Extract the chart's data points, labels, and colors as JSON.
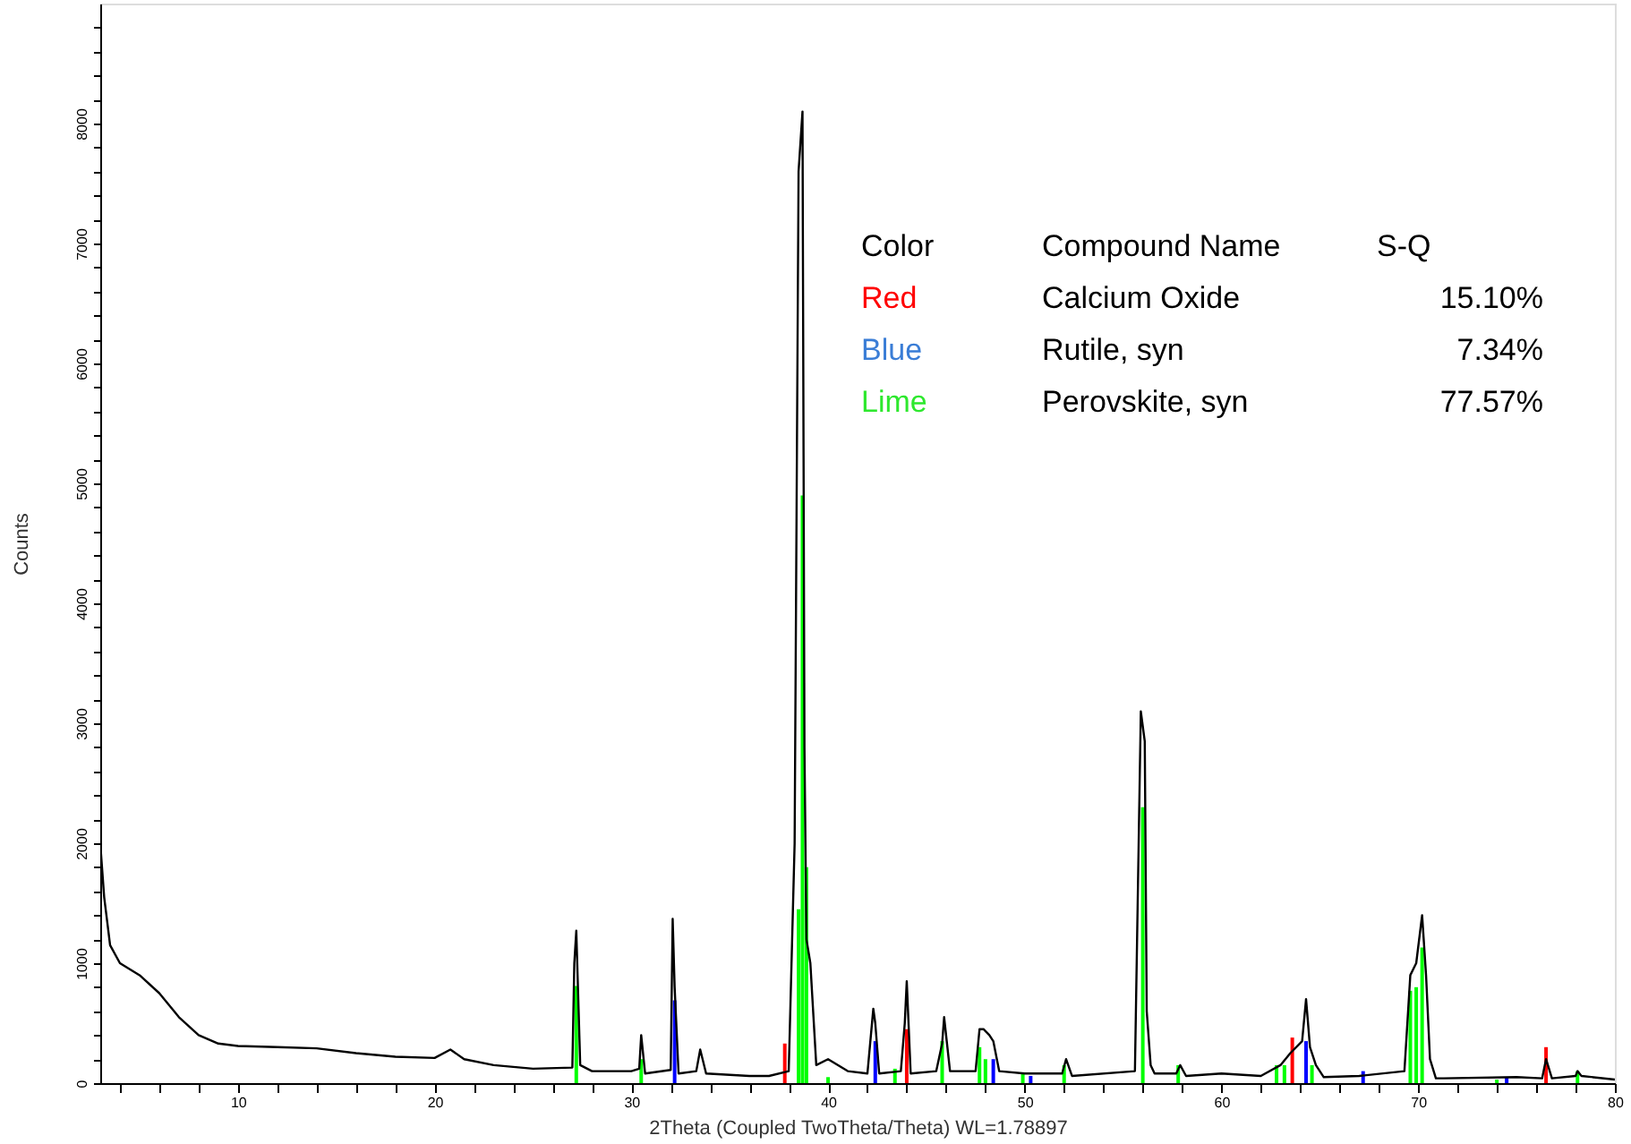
{
  "chart_data": {
    "type": "line",
    "xlabel": "2Theta (Coupled TwoTheta/Theta) WL=1.78897",
    "ylabel": "Counts",
    "xlim": [
      3,
      80
    ],
    "ylim": [
      0,
      9000
    ],
    "xticks": [
      {
        "value": 4,
        "label": null
      },
      {
        "value": 6,
        "label": null
      },
      {
        "value": 8,
        "label": null
      },
      10,
      {
        "value": 12,
        "label": null
      },
      {
        "value": 14,
        "label": null
      },
      {
        "value": 16,
        "label": null
      },
      {
        "value": 18,
        "label": null
      },
      20,
      {
        "value": 22,
        "label": null
      },
      {
        "value": 24,
        "label": null
      },
      {
        "value": 26,
        "label": null
      },
      {
        "value": 28,
        "label": null
      },
      30,
      {
        "value": 32,
        "label": null
      },
      {
        "value": 34,
        "label": null
      },
      {
        "value": 36,
        "label": null
      },
      {
        "value": 38,
        "label": null
      },
      40,
      {
        "value": 42,
        "label": null
      },
      {
        "value": 44,
        "label": null
      },
      {
        "value": 46,
        "label": null
      },
      {
        "value": 48,
        "label": null
      },
      50,
      {
        "value": 52,
        "label": null
      },
      {
        "value": 54,
        "label": null
      },
      {
        "value": 56,
        "label": null
      },
      {
        "value": 58,
        "label": null
      },
      60,
      {
        "value": 62,
        "label": null
      },
      {
        "value": 64,
        "label": null
      },
      {
        "value": 66,
        "label": null
      },
      {
        "value": 68,
        "label": null
      },
      70,
      {
        "value": 72,
        "label": null
      },
      {
        "value": 74,
        "label": null
      },
      {
        "value": 76,
        "label": null
      },
      {
        "value": 78,
        "label": null
      },
      80
    ],
    "yticks": [
      0,
      {
        "value": 200,
        "label": null
      },
      {
        "value": 400,
        "label": null
      },
      {
        "value": 600,
        "label": null
      },
      {
        "value": 800,
        "label": null
      },
      1000,
      {
        "value": 1200,
        "label": null
      },
      {
        "value": 1400,
        "label": null
      },
      {
        "value": 1600,
        "label": null
      },
      {
        "value": 1800,
        "label": null
      },
      2000,
      {
        "value": 2200,
        "label": null
      },
      {
        "value": 2400,
        "label": null
      },
      {
        "value": 2600,
        "label": null
      },
      {
        "value": 2800,
        "label": null
      },
      3000,
      {
        "value": 3200,
        "label": null
      },
      {
        "value": 3400,
        "label": null
      },
      {
        "value": 3600,
        "label": null
      },
      {
        "value": 3800,
        "label": null
      },
      4000,
      {
        "value": 4200,
        "label": null
      },
      {
        "value": 4400,
        "label": null
      },
      {
        "value": 4600,
        "label": null
      },
      {
        "value": 4800,
        "label": null
      },
      5000,
      {
        "value": 5200,
        "label": null
      },
      {
        "value": 5400,
        "label": null
      },
      {
        "value": 5600,
        "label": null
      },
      {
        "value": 5800,
        "label": null
      },
      6000,
      {
        "value": 6200,
        "label": null
      },
      {
        "value": 6400,
        "label": null
      },
      {
        "value": 6600,
        "label": null
      },
      {
        "value": 6800,
        "label": null
      },
      7000,
      {
        "value": 7200,
        "label": null
      },
      {
        "value": 7400,
        "label": null
      },
      {
        "value": 7600,
        "label": null
      },
      {
        "value": 7800,
        "label": null
      },
      8000,
      {
        "value": 8200,
        "label": null
      },
      {
        "value": 8400,
        "label": null
      },
      {
        "value": 8600,
        "label": null
      },
      {
        "value": 8800,
        "label": null
      }
    ],
    "grid": false,
    "series": [
      {
        "color": "#000000",
        "x": [
          3,
          3.2,
          3.5,
          4,
          5,
          6,
          7,
          8,
          9,
          10,
          12,
          14,
          16,
          18,
          20,
          20.8,
          21.5,
          23,
          25,
          27.0,
          27.1,
          27.2,
          27.4,
          28,
          30,
          30.4,
          30.5,
          30.7,
          32.0,
          32.1,
          32.2,
          32.4,
          33.3,
          33.5,
          33.8,
          36,
          37,
          38.0,
          38.3,
          38.5,
          38.7,
          38.8,
          38.9,
          39.1,
          39.4,
          40,
          41,
          42,
          42.3,
          42.4,
          42.6,
          43.7,
          43.9,
          44.0,
          44.2,
          45.5,
          45.8,
          45.9,
          46.2,
          47.5,
          47.7,
          47.9,
          48.2,
          48.4,
          48.7,
          50,
          51.9,
          52.1,
          52.4,
          55.6,
          55.9,
          56.1,
          56.2,
          56.4,
          56.6,
          57.7,
          57.9,
          58.2,
          60,
          62,
          63,
          63.5,
          64.1,
          64.3,
          64.5,
          64.8,
          65.2,
          67,
          69.3,
          69.6,
          69.9,
          70.2,
          70.4,
          70.6,
          70.9,
          71.3,
          75,
          76.3,
          76.5,
          76.8,
          78,
          78.1,
          78.3,
          80
        ],
        "values": [
          2000,
          1550,
          1150,
          1000,
          900,
          750,
          550,
          400,
          330,
          310,
          300,
          290,
          250,
          220,
          210,
          280,
          200,
          150,
          120,
          130,
          1000,
          1270,
          150,
          100,
          100,
          120,
          400,
          80,
          110,
          1370,
          800,
          80,
          100,
          280,
          80,
          60,
          60,
          100,
          2000,
          7600,
          8100,
          2800,
          1200,
          1000,
          150,
          200,
          100,
          80,
          620,
          500,
          80,
          100,
          500,
          850,
          80,
          100,
          330,
          550,
          100,
          100,
          450,
          450,
          400,
          350,
          100,
          80,
          80,
          200,
          60,
          100,
          3100,
          2850,
          600,
          150,
          80,
          80,
          150,
          60,
          80,
          60,
          150,
          250,
          350,
          700,
          300,
          150,
          50,
          60,
          100,
          900,
          1000,
          1400,
          900,
          200,
          40,
          40,
          50,
          40,
          200,
          40,
          60,
          100,
          60,
          30
        ]
      },
      {
        "type": "bar",
        "color": "#ff0000",
        "x": [
          37.8,
          44.0,
          63.6,
          76.5
        ],
        "values": [
          330,
          450,
          380,
          300
        ]
      },
      {
        "type": "bar",
        "color": "#0000ff",
        "x": [
          32.2,
          42.4,
          48.4,
          50.3,
          64.3,
          67.2,
          74.5
        ],
        "values": [
          690,
          350,
          200,
          60,
          350,
          100,
          50
        ]
      },
      {
        "type": "bar",
        "color": "#00ff00",
        "x": [
          27.2,
          30.5,
          38.5,
          38.7,
          38.9,
          40,
          43.4,
          45.8,
          47.7,
          48.0,
          49.9,
          52.0,
          56.0,
          57.8,
          62.8,
          63.2,
          64.6,
          69.6,
          69.9,
          70.2,
          74,
          78.1
        ],
        "values": [
          810,
          200,
          1450,
          4900,
          1800,
          50,
          120,
          350,
          300,
          200,
          80,
          150,
          2300,
          150,
          150,
          150,
          150,
          770,
          800,
          1130,
          30,
          100
        ]
      }
    ],
    "annotations": [
      "Color",
      "Compound Name",
      "S-Q",
      "Red",
      "Calcium Oxide",
      "15.10%",
      "Blue",
      "Rutile, syn",
      "7.34%",
      "Lime",
      "Perovskite, syn",
      "77.57%"
    ]
  }
}
